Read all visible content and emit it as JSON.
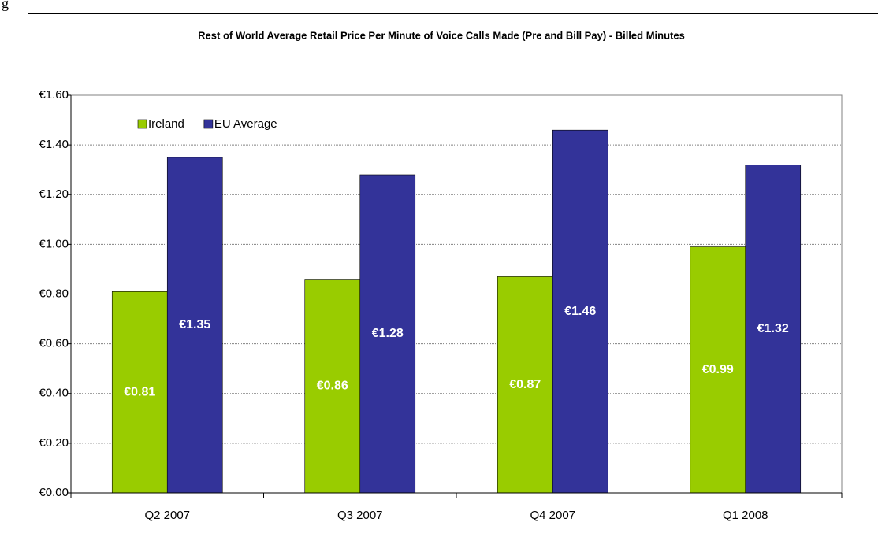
{
  "caption": "g",
  "chart_data": {
    "type": "bar",
    "title": "Rest of World Average Retail Price Per Minute of Voice Calls Made (Pre and Bill Pay) - Billed Minutes",
    "categories": [
      "Q2 2007",
      "Q3 2007",
      "Q4 2007",
      "Q1 2008"
    ],
    "series": [
      {
        "name": "Ireland",
        "color": "#99cc00",
        "values": [
          0.81,
          0.86,
          0.87,
          0.99
        ],
        "value_labels": [
          "€0.81",
          "€0.86",
          "€0.87",
          "€0.99"
        ]
      },
      {
        "name": "EU Average",
        "color": "#333399",
        "values": [
          1.35,
          1.28,
          1.46,
          1.32
        ],
        "value_labels": [
          "€1.35",
          "€1.28",
          "€1.46",
          "€1.32"
        ]
      }
    ],
    "ylim": [
      0,
      1.6
    ],
    "yticks": [
      {
        "value": 0,
        "label": "€0.00"
      },
      {
        "value": 0.2,
        "label": "€0.20"
      },
      {
        "value": 0.4,
        "label": "€0.40"
      },
      {
        "value": 0.6,
        "label": "€0.60"
      },
      {
        "value": 0.8,
        "label": "€0.80"
      },
      {
        "value": 1.0,
        "label": "€1.00"
      },
      {
        "value": 1.2,
        "label": "€1.20"
      },
      {
        "value": 1.4,
        "label": "€1.40"
      },
      {
        "value": 1.6,
        "label": "€1.60"
      }
    ],
    "grid": true,
    "legend": "top-left"
  }
}
